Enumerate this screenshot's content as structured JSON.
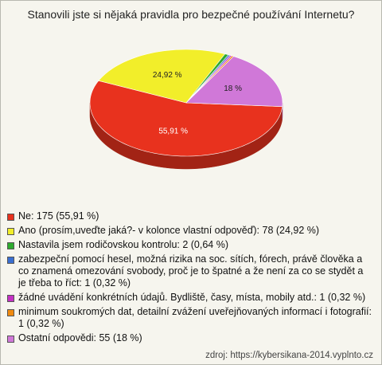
{
  "chart_data": {
    "type": "pie3d",
    "title": "Stanovili jste si nějaká pravidla pro bezpečné používání Internetu?",
    "categories": [
      "Ne: 175 (55,91 %)",
      "Ano (prosím,uveďte jaká?- v kolonce vlastní odpověď): 78 (24,92 %)",
      "Nastavila jsem rodičovskou kontrolu: 2 (0,64 %)",
      "zabezpeční pomocí hesel, možná rizika na soc. sítích, fórech, právě člověka a co znamená omezování svobody, proč je to špatné a že není za co se stydět a je třeba to říct: 1 (0,32 %)",
      "žádné uvádění konkrétních údajů. Bydliště, časy, místa, mobily atd.: 1 (0,32 %)",
      "minimum soukromých dat, detailní zvážení uveřejňovaných informací i fotografií: 1 (0,32 %)",
      "Ostatní odpovědi: 55 (18 %)"
    ],
    "values": [
      55.91,
      24.92,
      0.64,
      0.32,
      0.32,
      0.32,
      18
    ],
    "value_labels": [
      "55,91 %",
      "24,92 %",
      null,
      null,
      null,
      null,
      "18 %"
    ],
    "colors": [
      "#e8321e",
      "#f2ee2a",
      "#2eaa2e",
      "#3a6fd0",
      "#c431c4",
      "#f08a10",
      "#d078d8"
    ],
    "source": "zdroj: https://kybersikana-2014.vyplnto.cz"
  }
}
